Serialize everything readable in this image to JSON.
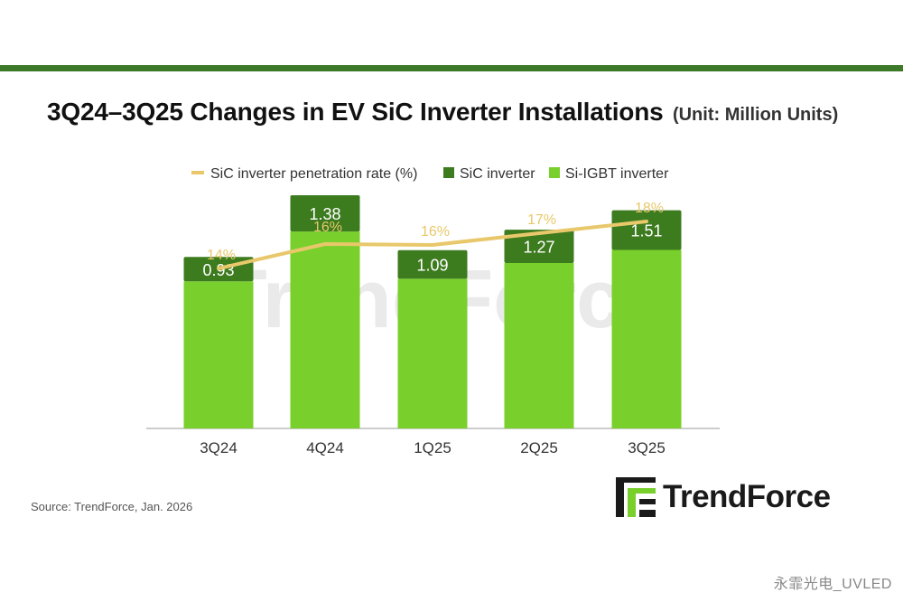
{
  "title": "3Q24–3Q25 Changes in EV SiC Inverter Installations",
  "unit": "(Unit: Million Units)",
  "source": "Source: TrendForce, Jan. 2026",
  "brand": "TrendForce",
  "corner_watermark": "永霏光电_UVLED",
  "colors": {
    "rule": "#3c7a2a",
    "sic": "#3d7b1f",
    "si_igbt": "#79cf2b",
    "penetration_line": "#e8c86a"
  },
  "chart_data": {
    "type": "bar",
    "stacked": true,
    "categories": [
      "3Q24",
      "4Q24",
      "1Q25",
      "2Q25",
      "3Q25"
    ],
    "series": [
      {
        "name": "SiC inverter",
        "values": [
          0.93,
          1.38,
          1.09,
          1.27,
          1.51
        ]
      },
      {
        "name": "Si-IGBT inverter",
        "values": [
          5.6,
          7.5,
          5.7,
          6.3,
          6.8
        ]
      }
    ],
    "line_series": {
      "name": "SiC inverter penetration rate (%)",
      "values": [
        14,
        16,
        16,
        17,
        18
      ],
      "labels": [
        "14%",
        "16%",
        "16%",
        "17%",
        "18%"
      ]
    },
    "legend": [
      "SiC inverter penetration rate (%)",
      "SiC inverter",
      "Si-IGBT inverter"
    ],
    "legend_position": "top",
    "grid": false,
    "ylim": [
      0,
      9.5
    ]
  }
}
